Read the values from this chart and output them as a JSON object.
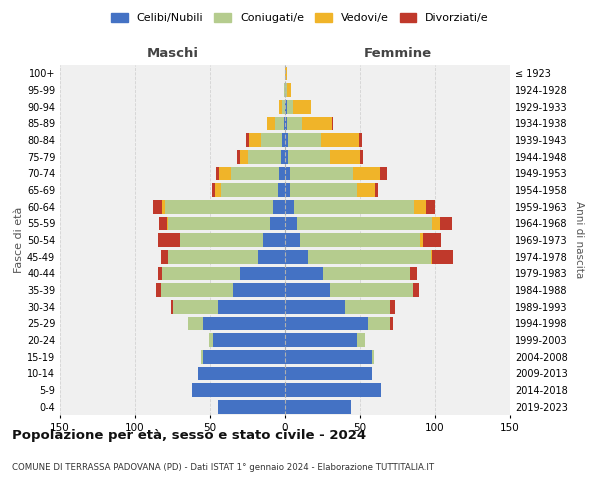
{
  "age_groups_bottom_to_top": [
    "0-4",
    "5-9",
    "10-14",
    "15-19",
    "20-24",
    "25-29",
    "30-34",
    "35-39",
    "40-44",
    "45-49",
    "50-54",
    "55-59",
    "60-64",
    "65-69",
    "70-74",
    "75-79",
    "80-84",
    "85-89",
    "90-94",
    "95-99",
    "100+"
  ],
  "birth_years_bottom_to_top": [
    "2019-2023",
    "2014-2018",
    "2009-2013",
    "2004-2008",
    "1999-2003",
    "1994-1998",
    "1989-1993",
    "1984-1988",
    "1979-1983",
    "1974-1978",
    "1969-1973",
    "1964-1968",
    "1959-1963",
    "1954-1958",
    "1949-1953",
    "1944-1948",
    "1939-1943",
    "1934-1938",
    "1929-1933",
    "1924-1928",
    "≤ 1923"
  ],
  "colors": {
    "celibi": "#4472c4",
    "coniugati": "#b5cc8e",
    "vedovi": "#f0b429",
    "divorziati": "#c0392b"
  },
  "males": {
    "celibi": [
      45,
      62,
      58,
      55,
      48,
      55,
      45,
      35,
      30,
      18,
      15,
      10,
      8,
      5,
      4,
      3,
      2,
      1,
      0,
      0,
      0
    ],
    "coniugati": [
      0,
      0,
      0,
      1,
      3,
      10,
      30,
      48,
      52,
      60,
      55,
      68,
      72,
      38,
      32,
      22,
      14,
      6,
      2,
      1,
      0
    ],
    "vedovi": [
      0,
      0,
      0,
      0,
      0,
      0,
      0,
      0,
      0,
      0,
      0,
      1,
      2,
      4,
      8,
      5,
      8,
      5,
      2,
      0,
      0
    ],
    "divorziati": [
      0,
      0,
      0,
      0,
      0,
      0,
      1,
      3,
      3,
      5,
      15,
      5,
      6,
      2,
      2,
      2,
      2,
      0,
      0,
      0,
      0
    ]
  },
  "females": {
    "celibi": [
      44,
      64,
      58,
      58,
      48,
      55,
      40,
      30,
      25,
      15,
      10,
      8,
      6,
      3,
      3,
      2,
      2,
      1,
      1,
      0,
      0
    ],
    "coniugati": [
      0,
      0,
      0,
      1,
      5,
      15,
      30,
      55,
      58,
      82,
      80,
      90,
      80,
      45,
      42,
      28,
      22,
      10,
      4,
      1,
      0
    ],
    "vedovi": [
      0,
      0,
      0,
      0,
      0,
      0,
      0,
      0,
      0,
      1,
      2,
      5,
      8,
      12,
      18,
      20,
      25,
      20,
      12,
      3,
      1
    ],
    "divorziati": [
      0,
      0,
      0,
      0,
      0,
      2,
      3,
      4,
      5,
      14,
      12,
      8,
      6,
      2,
      5,
      2,
      2,
      1,
      0,
      0,
      0
    ]
  },
  "title": "Popolazione per età, sesso e stato civile - 2024",
  "subtitle": "COMUNE DI TERRASSA PADOVANA (PD) - Dati ISTAT 1° gennaio 2024 - Elaborazione TUTTITALIA.IT",
  "xlabel_left": "Maschi",
  "xlabel_right": "Femmine",
  "ylabel_left": "Fasce di età",
  "ylabel_right": "Anni di nascita",
  "xlim": 150,
  "background_color": "#ffffff",
  "plot_bg_color": "#f0f0f0",
  "grid_color": "#cccccc",
  "legend_labels": [
    "Celibi/Nubili",
    "Coniugati/e",
    "Vedovi/e",
    "Divorziati/e"
  ]
}
